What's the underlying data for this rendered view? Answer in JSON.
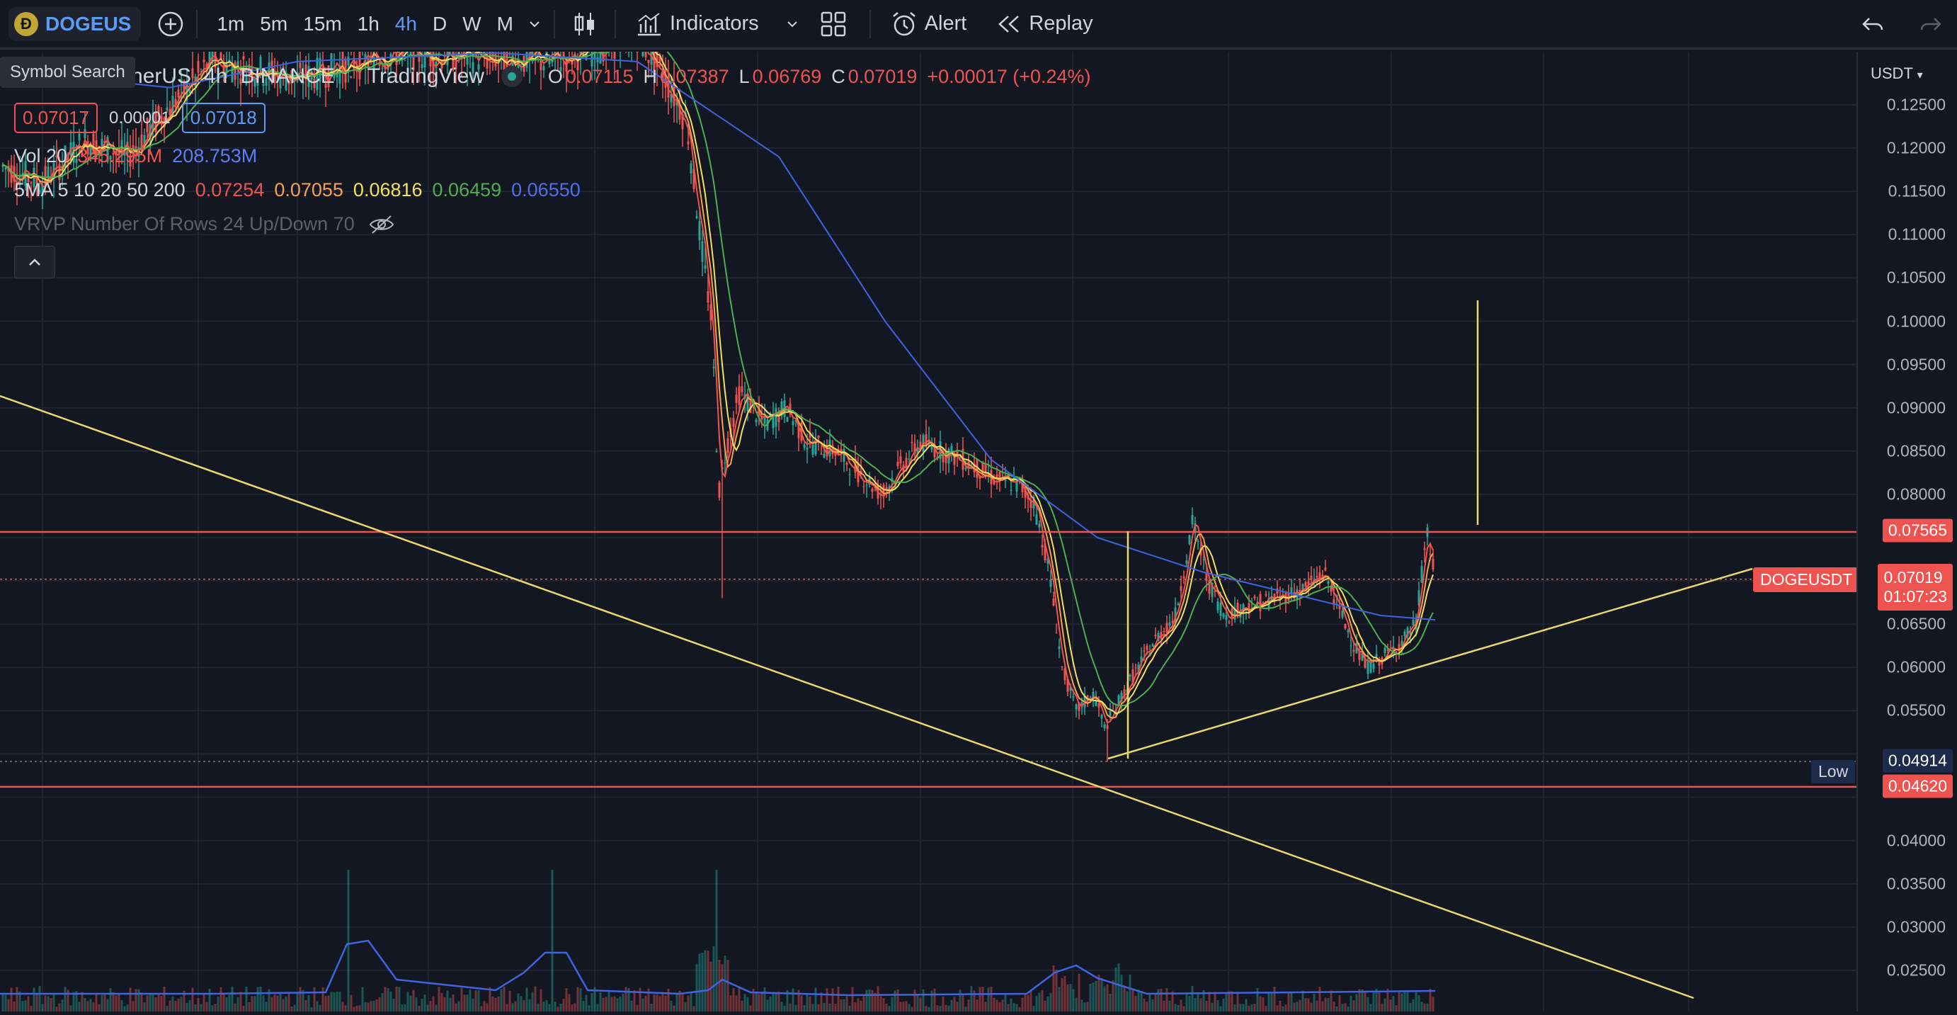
{
  "toolbar": {
    "symbol": "DOGEUS",
    "coin_glyph": "Ð",
    "timeframes": [
      "1m",
      "5m",
      "15m",
      "1h",
      "4h",
      "D",
      "W",
      "M"
    ],
    "active_timeframe": "4h",
    "indicators_label": "Indicators",
    "alert_label": "Alert",
    "replay_label": "Replay",
    "icons": [
      "add-symbol-icon",
      "chevron-down-icon",
      "candles-icon",
      "indicators-icon",
      "layout-icon",
      "alert-icon",
      "replay-icon",
      "undo-icon",
      "redo-icon"
    ]
  },
  "tooltip": {
    "text": "Symbol Search"
  },
  "legend": {
    "title_fragment": "etherUS",
    "interval": "4h",
    "exchange": "BINANCE",
    "source": "TradingView",
    "ohlc": {
      "o_label": "O",
      "o": "0.07115",
      "h_label": "H",
      "h": "0.07387",
      "l_label": "L",
      "l": "0.06769",
      "c_label": "C",
      "c": "0.07019",
      "change": "+0.00017 (+0.24%)"
    },
    "bid": "0.07017",
    "spread": "0.00001",
    "ask": "0.07018",
    "vol": {
      "label": "Vol 20",
      "v1": "345.295M",
      "v2": "208.753M"
    },
    "ma": {
      "label": "5MA 5 10 20 50 200",
      "values": [
        "0.07254",
        "0.07055",
        "0.06816",
        "0.06459",
        "0.06550"
      ]
    },
    "vrvp": {
      "label": "VRVP Number Of Rows 24 Up/Down 70"
    }
  },
  "price_axis": {
    "currency": "USDT",
    "ticks": [
      "0.12500",
      "0.12000",
      "0.11500",
      "0.11000",
      "0.10500",
      "0.10000",
      "0.09500",
      "0.09000",
      "0.08500",
      "0.08000",
      "0.06500",
      "0.06000",
      "0.05500",
      "0.04000",
      "0.03500",
      "0.03000",
      "0.02500"
    ],
    "tags": {
      "resistance": "0.07565",
      "symbol_label": "DOGEUSDT",
      "last": "0.07019",
      "countdown": "01:07:23",
      "low_label": "Low",
      "low": "0.04914",
      "support": "0.04620"
    }
  },
  "colors": {
    "background": "#131722",
    "accent": "#5b9cf6",
    "up": "#26a69a",
    "down": "#ef5350",
    "ma5": "#ef5350",
    "ma10": "#f7a14b",
    "ma20": "#f4e05f",
    "ma50": "#4caf50",
    "ma200": "#3f64e0",
    "drawing": "#e9d86a"
  }
}
